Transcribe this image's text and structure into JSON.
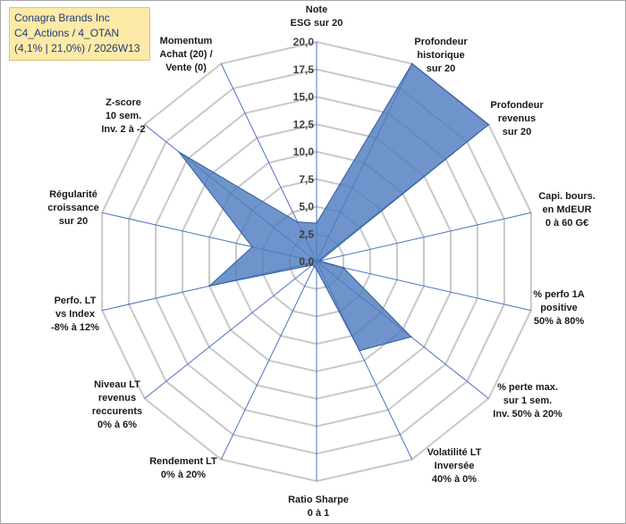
{
  "info": {
    "line1": "Conagra Brands Inc",
    "line2": "C4_Actions / 4_OTAN",
    "line3": "(4,1% | 21,0%) / 2026W13"
  },
  "chart_data": {
    "type": "radar",
    "rmin": 0,
    "rmax": 20,
    "ticks": [
      "0,0",
      "2,5",
      "5,0",
      "7,5",
      "10,0",
      "12,5",
      "15,0",
      "17,5",
      "20,0"
    ],
    "tick_values": [
      0,
      2.5,
      5,
      7.5,
      10,
      12.5,
      15,
      17.5,
      20
    ],
    "grid": true,
    "axes": [
      {
        "label": [
          "Note",
          "ESG sur 20"
        ],
        "value": 3.5
      },
      {
        "label": [
          "Profondeur",
          "historique",
          "sur 20"
        ],
        "value": 20
      },
      {
        "label": [
          "Profondeur",
          "revenus",
          "sur 20"
        ],
        "value": 20
      },
      {
        "label": [
          "Capi. bours.",
          "en MdEUR",
          "0 à 60 G€"
        ],
        "value": 0.3
      },
      {
        "label": [
          "% perfo 1A",
          "positive",
          "50% à 80%"
        ],
        "value": 2.5
      },
      {
        "label": [
          "% perte max.",
          "sur 1 sem.",
          "Inv. 50% à 20%"
        ],
        "value": 11
      },
      {
        "label": [
          "Volatilité LT",
          "Inversée",
          "40% à 0%"
        ],
        "value": 9
      },
      {
        "label": [
          "Ratio Sharpe",
          "0 à 1"
        ],
        "value": 0.7
      },
      {
        "label": [
          "Rendement LT",
          "0% à 20%"
        ],
        "value": 0.5
      },
      {
        "label": [
          "Niveau LT",
          "revenus",
          "reccurents",
          "0% à 6%"
        ],
        "value": 0.5
      },
      {
        "label": [
          "Perfo. LT",
          "vs Index",
          "-8% à 12%"
        ],
        "value": 10
      },
      {
        "label": [
          "Régularité",
          "croissance",
          "sur 20"
        ],
        "value": 6
      },
      {
        "label": [
          "Z-score",
          "10 sem.",
          "Inv. 2 à -2"
        ],
        "value": 16
      },
      {
        "label": [
          "Momentum",
          "Achat (20) /",
          "Vente (0)"
        ],
        "value": 4
      }
    ],
    "colors": {
      "fill": "#4f7dbf",
      "stroke": "#2f5a9e",
      "spoke": "#4a72c4",
      "grid": "#c8c8c8"
    }
  }
}
